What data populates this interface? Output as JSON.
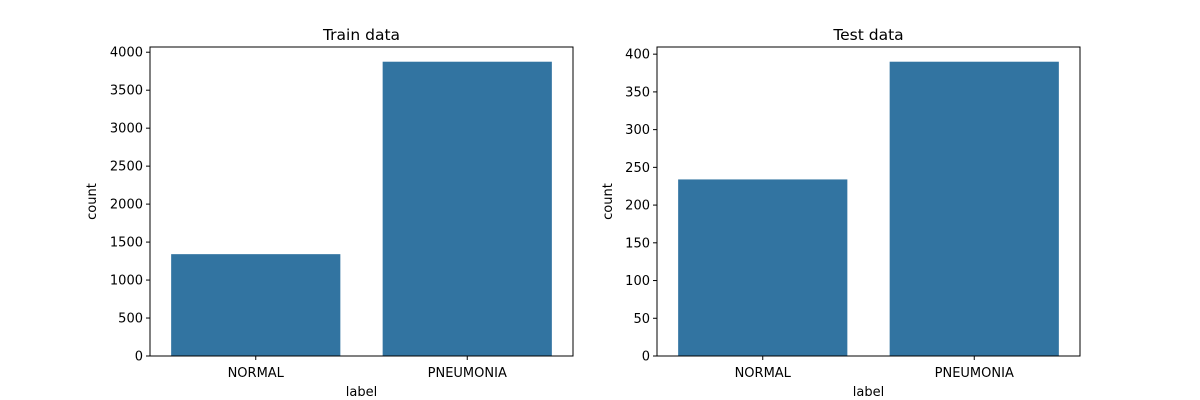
{
  "bar_color": "#3274a1",
  "chart_data": [
    {
      "type": "bar",
      "title": "Train data",
      "xlabel": "label",
      "ylabel": "count",
      "categories": [
        "NORMAL",
        "PNEUMONIA"
      ],
      "values": [
        1341,
        3875
      ],
      "ylim": [
        0,
        4068.75
      ],
      "yticks": [
        0,
        500,
        1000,
        1500,
        2000,
        2500,
        3000,
        3500,
        4000
      ],
      "grid": false
    },
    {
      "type": "bar",
      "title": "Test data",
      "xlabel": "label",
      "ylabel": "count",
      "categories": [
        "NORMAL",
        "PNEUMONIA"
      ],
      "values": [
        234,
        390
      ],
      "ylim": [
        0,
        409.5
      ],
      "yticks": [
        0,
        50,
        100,
        150,
        200,
        250,
        300,
        350,
        400
      ],
      "grid": false
    }
  ]
}
